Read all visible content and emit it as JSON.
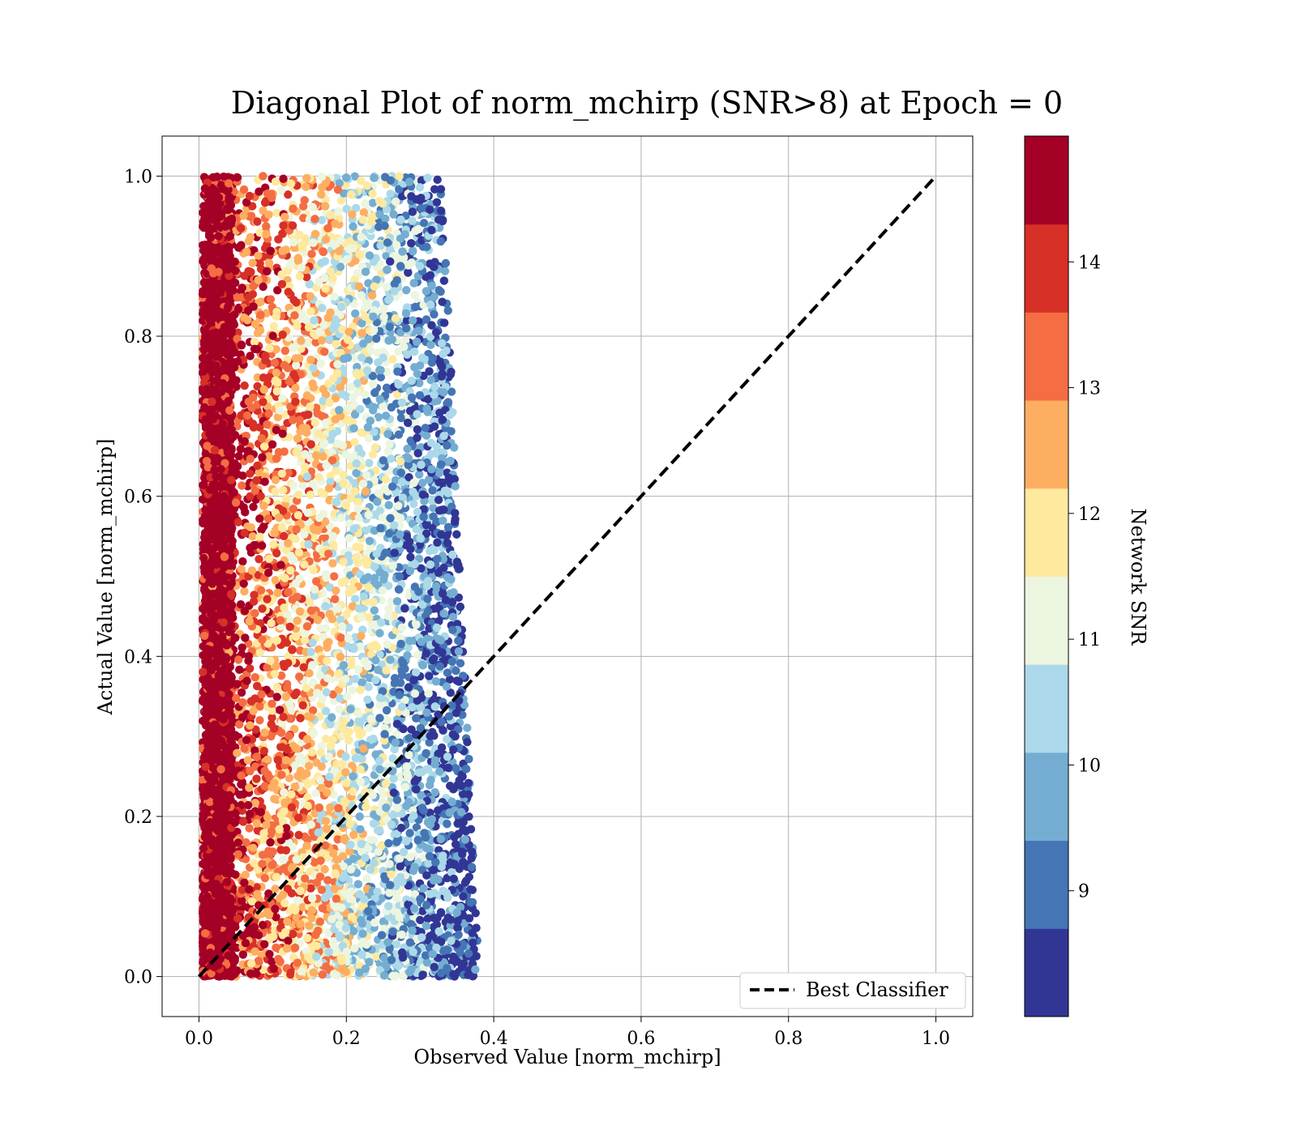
{
  "chart_data": {
    "type": "scatter",
    "title": "Diagonal Plot of norm_mchirp (SNR>8) at Epoch = 0",
    "xlabel": "Observed Value [norm_mchirp]",
    "ylabel": "Actual Value [norm_mchirp]",
    "xlim": [
      -0.05,
      1.05
    ],
    "ylim": [
      -0.05,
      1.05
    ],
    "xticks": [
      "0.0",
      "0.2",
      "0.4",
      "0.6",
      "0.8",
      "1.0"
    ],
    "yticks": [
      "0.0",
      "0.2",
      "0.4",
      "0.6",
      "0.8",
      "1.0"
    ],
    "grid": true,
    "reference_line": {
      "name": "Best Classifier",
      "x": [
        0.0,
        1.0
      ],
      "y": [
        0.0,
        1.0
      ],
      "style": "dashed",
      "color": "#000000"
    },
    "legend": {
      "position": "lower-right",
      "entries": [
        "Best Classifier"
      ]
    },
    "colorbar": {
      "label": "Network SNR",
      "ticks": [
        "9",
        "10",
        "11",
        "12",
        "13",
        "14"
      ],
      "range": [
        8,
        15
      ],
      "colors": [
        "#313695",
        "#4575b4",
        "#74add1",
        "#abd9e9",
        "#e0f3f8",
        "#ffffbf",
        "#fee090",
        "#fdae61",
        "#f46d43",
        "#d73027",
        "#a50026"
      ]
    },
    "series": [
      {
        "description_of_distribution": "",
        "points_generated_by_script": true,
        "observed_range": [
          0.0,
          0.4
        ],
        "actual_range": [
          0.0,
          1.0
        ]
      }
    ]
  }
}
